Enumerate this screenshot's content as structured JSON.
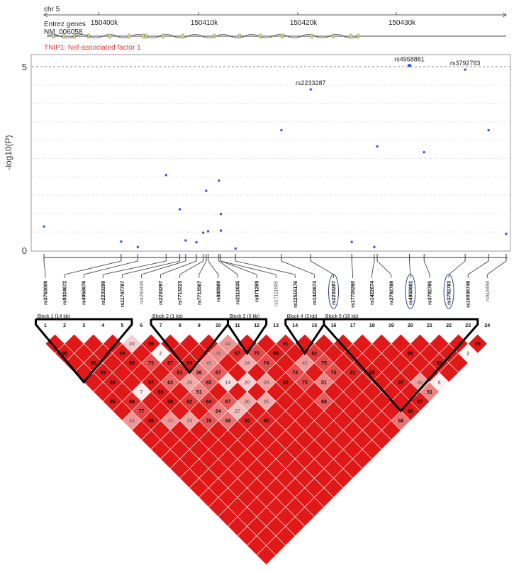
{
  "header": {
    "chromosome": "chr 5",
    "ticks": [
      "150400k",
      "150410k",
      "150420k",
      "150430k"
    ],
    "gene_track_title": "Entrez genes",
    "transcript": "NM_006058",
    "gene_label": "TNIP1: Nef-associated factor 1"
  },
  "colors": {
    "gene_label": "#e23b3b",
    "point": "#3b4bd8",
    "block": "#000000",
    "circle": "#2a3f8f"
  },
  "chart_data": [
    {
      "type": "scatter",
      "title": "",
      "xlabel": "",
      "ylabel": "-log10(P)",
      "ylim": [
        0,
        5.3
      ],
      "yticks": [
        0,
        5
      ],
      "threshold_line": 5,
      "grid": "dashed horizontal",
      "points": [
        {
          "x": 150392.9,
          "y": 0.65
        },
        {
          "x": 150400.8,
          "y": 0.24
        },
        {
          "x": 150402.5,
          "y": 0.09
        },
        {
          "x": 150405.4,
          "y": 2.05
        },
        {
          "x": 150406.8,
          "y": 1.12
        },
        {
          "x": 150407.4,
          "y": 0.27
        },
        {
          "x": 150408.5,
          "y": 0.22
        },
        {
          "x": 150409.2,
          "y": 0.48
        },
        {
          "x": 150409.5,
          "y": 1.62
        },
        {
          "x": 150409.7,
          "y": 0.52
        },
        {
          "x": 150410.8,
          "y": 1.9
        },
        {
          "x": 150411.0,
          "y": 0.99
        },
        {
          "x": 150411.0,
          "y": 0.54
        },
        {
          "x": 150412.5,
          "y": 0.05
        },
        {
          "x": 150417.2,
          "y": 3.27
        },
        {
          "x": 150420.2,
          "y": 4.38,
          "label": "rs2233287"
        },
        {
          "x": 150424.4,
          "y": 0.23
        },
        {
          "x": 150426.7,
          "y": 0.09
        },
        {
          "x": 150427.0,
          "y": 2.83
        },
        {
          "x": 150430.3,
          "y": 5.03,
          "label": "rs4958881"
        },
        {
          "x": 150431.8,
          "y": 2.67
        },
        {
          "x": 150436.0,
          "y": 4.92,
          "label": "rs3792783"
        },
        {
          "x": 150438.4,
          "y": 3.27
        },
        {
          "x": 150440.2,
          "y": 0.45
        }
      ]
    },
    {
      "type": "heatmap",
      "title": "",
      "markers": [
        {
          "id": "1",
          "name": "rs3763009"
        },
        {
          "id": "2",
          "name": "rs9324672"
        },
        {
          "id": "3",
          "name": "rs4958876"
        },
        {
          "id": "4",
          "name": "rs2233299"
        },
        {
          "id": "5",
          "name": "rs11747787"
        },
        {
          "id": "6",
          "name": "rs4292439"
        },
        {
          "id": "7",
          "name": "rs2233297"
        },
        {
          "id": "8",
          "name": "rs7713223"
        },
        {
          "id": "9",
          "name": "rs7713567"
        },
        {
          "id": "10",
          "name": "rs888989"
        },
        {
          "id": "11",
          "name": "rs2112635"
        },
        {
          "id": "12",
          "name": "rs871269"
        },
        {
          "id": "13",
          "name": "rs17111695"
        },
        {
          "id": "14",
          "name": "rs12516176"
        },
        {
          "id": "15",
          "name": "rs1422673"
        },
        {
          "id": "16",
          "name": "rs2233287"
        },
        {
          "id": "17",
          "name": "rs17728260"
        },
        {
          "id": "18",
          "name": "rs1422674"
        },
        {
          "id": "19",
          "name": "rs3792789"
        },
        {
          "id": "20",
          "name": "rs4958881"
        },
        {
          "id": "21",
          "name": "rs3792785"
        },
        {
          "id": "22",
          "name": "rs3792783"
        },
        {
          "id": "23",
          "name": "rs10036748"
        },
        {
          "id": "24",
          "name": "rs918498"
        }
      ],
      "blocks": [
        {
          "label": "Block 1 (14 kb)",
          "start": 1,
          "end": 5
        },
        {
          "label": "Block 2 (1 kb)",
          "start": 7,
          "end": 10
        },
        {
          "label": "Block 3 (0 kb)",
          "start": 11,
          "end": 12
        },
        {
          "label": "Block 4 (3 kb)",
          "start": 14,
          "end": 15
        },
        {
          "label": "Block 5 (18 kb)",
          "start": 16,
          "end": 23
        }
      ],
      "circled_markers": [
        "rs2233287",
        "rs4958881",
        "rs3792783"
      ],
      "ld_rows": [
        {
          "distance": 1,
          "values": [
            "",
            "",
            "",
            "",
            "20",
            "99",
            "",
            "",
            "",
            "44",
            "",
            "",
            "91",
            "",
            "",
            "",
            "",
            "",
            "",
            "",
            "",
            "",
            "99"
          ]
        },
        {
          "distance": 2,
          "values": [
            "96",
            "",
            "",
            "99",
            "",
            "2",
            "",
            "",
            "49",
            "87",
            "75",
            "96",
            "",
            "82",
            "",
            "",
            "",
            "",
            "96",
            "",
            "",
            "2"
          ]
        },
        {
          "distance": 3,
          "values": [
            "",
            "98",
            "",
            "99",
            "73",
            "87",
            "99",
            "45",
            "",
            "34",
            "74",
            "",
            "42",
            "75",
            "",
            "",
            "",
            "",
            "",
            "99"
          ]
        },
        {
          "distance": 4,
          "values": [
            "",
            "99",
            "",
            "",
            "",
            "81",
            "56",
            "67",
            "",
            "",
            "",
            "74",
            "",
            "75",
            "91",
            "95",
            "",
            "",
            "",
            ""
          ]
        },
        {
          "distance": 5,
          "values": [
            "",
            "94",
            "",
            "97",
            "63",
            "36",
            "65",
            "14",
            "20",
            "39",
            "95",
            "75",
            "51",
            "",
            "",
            "",
            "97",
            "40",
            "6"
          ]
        },
        {
          "distance": 6,
          "values": [
            "",
            "",
            "7",
            "98",
            "",
            "51",
            "",
            "",
            "",
            "",
            "",
            "",
            "",
            "",
            "",
            "",
            "",
            "51"
          ]
        },
        {
          "distance": 7,
          "values": [
            "95",
            "88",
            "",
            "98",
            "82",
            "84",
            "67",
            "36",
            "35",
            "",
            "",
            "68",
            "",
            "",
            "",
            "",
            "97"
          ]
        },
        {
          "distance": 8,
          "values": [
            "",
            "77",
            "",
            "",
            "",
            "54",
            "27",
            "",
            "",
            "",
            "",
            "",
            "",
            "",
            "",
            "98"
          ]
        },
        {
          "distance": 9,
          "values": [
            "44",
            "98",
            "43",
            "39",
            "70",
            "59",
            "92",
            "90",
            "",
            "",
            "",
            "",
            "",
            "",
            "58"
          ]
        },
        {
          "distance": 10,
          "values": [
            "",
            "",
            "",
            "",
            "",
            "",
            "",
            "",
            "",
            "",
            "",
            "",
            "",
            ""
          ]
        }
      ]
    }
  ]
}
